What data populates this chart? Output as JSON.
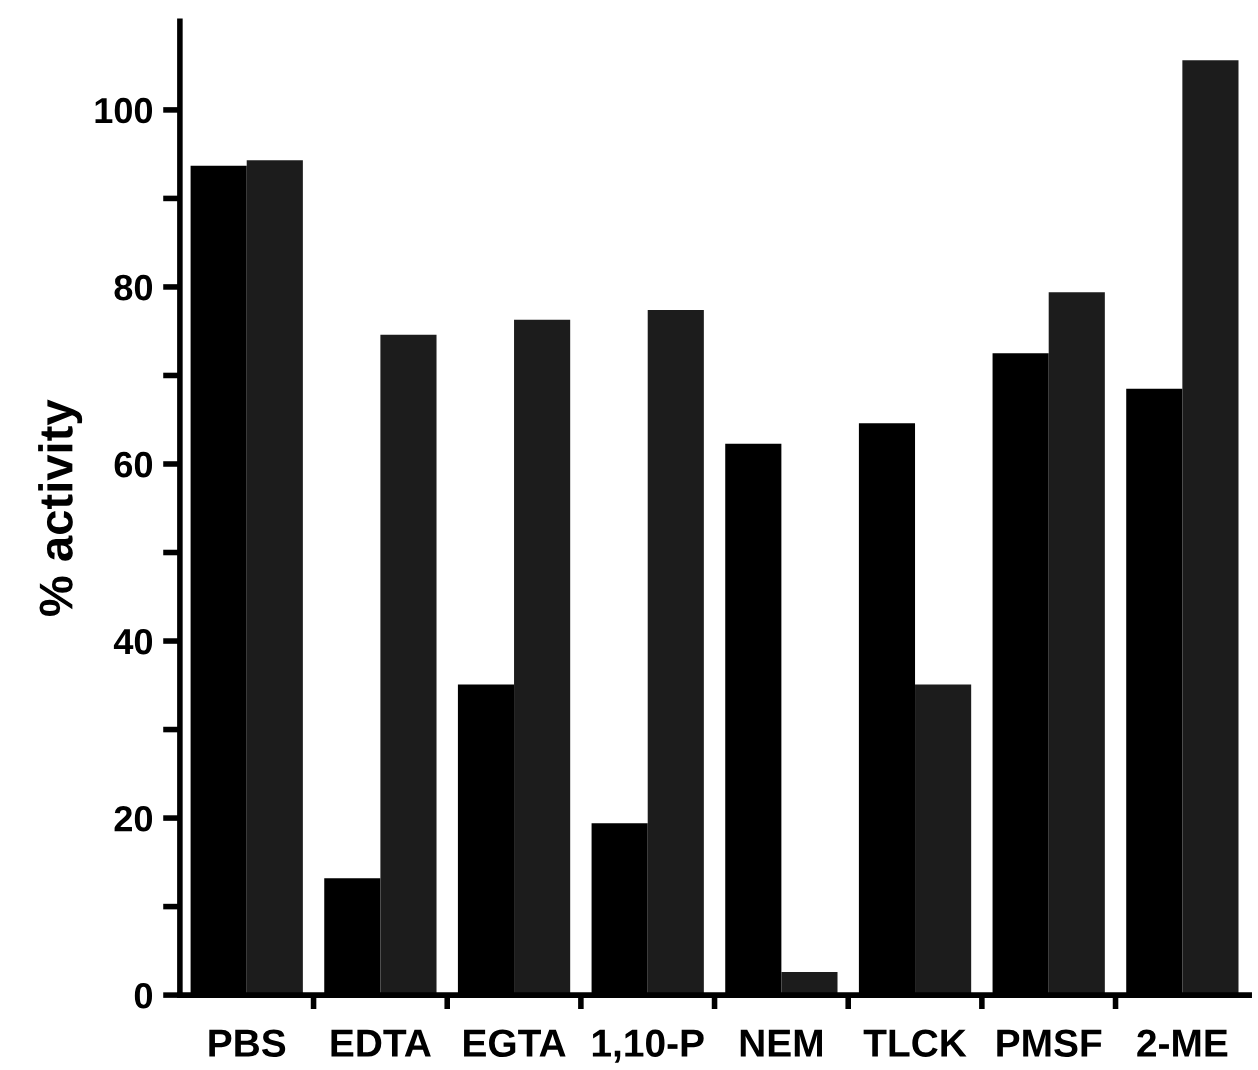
{
  "chart_data": {
    "type": "bar",
    "ylabel": "% activity",
    "categories": [
      "PBS",
      "EDTA",
      "EGTA",
      "1,10-P",
      "NEM",
      "TLCK",
      "PMSF",
      "2-ME"
    ],
    "series": [
      {
        "color": "#000000",
        "values": [
          93.7,
          13.2,
          35.1,
          19.4,
          62.3,
          64.6,
          72.5,
          68.5
        ]
      },
      {
        "color": "#1c1c1c",
        "values": [
          94.3,
          74.6,
          76.3,
          77.4,
          2.6,
          35.1,
          79.4,
          105.6
        ]
      }
    ],
    "ylim": [
      0,
      110
    ],
    "yticks": [
      0,
      {
        "value": 10,
        "label": null
      },
      20,
      {
        "value": 30,
        "label": null
      },
      40,
      {
        "value": 50,
        "label": null
      },
      60,
      {
        "value": 70,
        "label": null
      },
      80,
      {
        "value": 90,
        "label": null
      },
      100
    ],
    "grid": false,
    "legend": false
  }
}
